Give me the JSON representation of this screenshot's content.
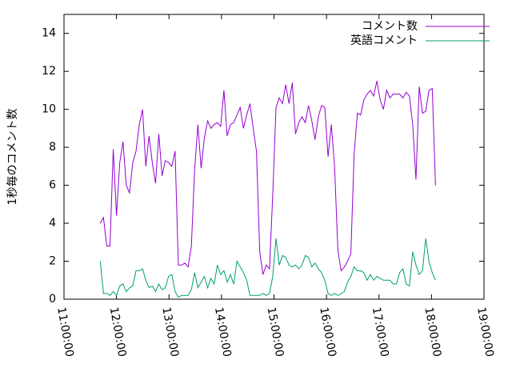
{
  "chart_data": {
    "type": "line",
    "ylabel": "1秒毎のコメント数",
    "x": [
      11.69,
      11.752,
      11.814,
      11.876,
      11.938,
      12.0,
      12.062,
      12.124,
      12.186,
      12.248,
      12.31,
      12.372,
      12.434,
      12.496,
      12.558,
      12.62,
      12.682,
      12.744,
      12.806,
      12.868,
      12.93,
      12.992,
      13.054,
      13.116,
      13.178,
      13.24,
      13.302,
      13.364,
      13.426,
      13.488,
      13.55,
      13.612,
      13.674,
      13.736,
      13.798,
      13.86,
      13.922,
      13.984,
      14.046,
      14.108,
      14.17,
      14.232,
      14.294,
      14.356,
      14.418,
      14.48,
      14.542,
      14.604,
      14.666,
      14.728,
      14.79,
      14.852,
      14.914,
      14.976,
      15.038,
      15.1,
      15.162,
      15.224,
      15.286,
      15.348,
      15.41,
      15.472,
      15.534,
      15.596,
      15.658,
      15.72,
      15.782,
      15.844,
      15.906,
      15.968,
      16.03,
      16.092,
      16.154,
      16.216,
      16.278,
      16.34,
      16.402,
      16.464,
      16.526,
      16.588,
      16.65,
      16.712,
      16.774,
      16.836,
      16.898,
      16.96,
      17.022,
      17.084,
      17.146,
      17.208,
      17.27,
      17.332,
      17.394,
      17.456,
      17.518,
      17.58,
      17.642,
      17.704,
      17.766,
      17.828,
      17.89,
      17.952,
      18.014,
      18.076
    ],
    "series": [
      {
        "name": "コメント数",
        "color": "#9400d3",
        "values": [
          4.0,
          4.3,
          2.8,
          2.8,
          7.9,
          4.4,
          7.2,
          8.3,
          6.0,
          5.6,
          7.2,
          7.8,
          9.2,
          10.0,
          7.0,
          8.6,
          7.2,
          6.1,
          8.7,
          6.5,
          7.3,
          7.2,
          7.0,
          7.8,
          1.8,
          1.8,
          1.9,
          1.7,
          2.8,
          6.8,
          9.2,
          6.9,
          8.5,
          9.4,
          9.0,
          9.2,
          9.3,
          9.1,
          11.0,
          8.6,
          9.2,
          9.3,
          9.7,
          10.1,
          9.0,
          9.7,
          10.3,
          9.0,
          7.8,
          2.5,
          1.3,
          1.8,
          1.6,
          5.5,
          10.1,
          10.6,
          10.3,
          11.3,
          10.3,
          11.4,
          8.7,
          9.3,
          9.6,
          9.3,
          10.2,
          9.4,
          8.4,
          9.6,
          10.2,
          10.1,
          7.5,
          9.2,
          7.0,
          2.6,
          1.5,
          1.7,
          2.0,
          2.4,
          7.6,
          9.8,
          9.7,
          10.5,
          10.8,
          11.0,
          10.7,
          11.5,
          10.5,
          10.0,
          11.0,
          10.6,
          10.8,
          10.8,
          10.8,
          10.6,
          10.9,
          10.7,
          9.2,
          6.3,
          11.2,
          9.8,
          9.9,
          11.0,
          11.1,
          6.0
        ]
      },
      {
        "name": "英語コメント",
        "color": "#009e73",
        "values": [
          2.0,
          0.3,
          0.3,
          0.2,
          0.4,
          0.2,
          0.7,
          0.8,
          0.4,
          0.6,
          0.7,
          1.5,
          1.5,
          1.6,
          1.0,
          0.6,
          0.7,
          0.4,
          0.8,
          0.5,
          0.6,
          1.2,
          1.3,
          0.4,
          0.1,
          0.2,
          0.2,
          0.2,
          0.5,
          1.4,
          0.6,
          0.9,
          1.2,
          0.6,
          1.1,
          0.8,
          1.8,
          1.3,
          1.5,
          0.9,
          1.3,
          0.8,
          2.0,
          1.7,
          1.4,
          1.0,
          0.2,
          0.2,
          0.2,
          0.2,
          0.3,
          0.2,
          0.3,
          1.2,
          3.2,
          1.8,
          2.3,
          2.2,
          1.8,
          1.7,
          1.8,
          1.6,
          1.8,
          2.3,
          2.2,
          1.7,
          1.9,
          1.6,
          1.4,
          1.0,
          0.3,
          0.2,
          0.3,
          0.2,
          0.3,
          0.4,
          0.9,
          1.2,
          1.7,
          1.5,
          1.5,
          1.4,
          1.0,
          1.3,
          1.0,
          1.2,
          1.1,
          1.0,
          1.0,
          1.0,
          0.8,
          0.8,
          1.4,
          1.6,
          0.8,
          0.7,
          2.5,
          1.8,
          1.3,
          1.5,
          3.2,
          2.0,
          1.4,
          1.0
        ]
      }
    ],
    "xlim": [
      11,
      19
    ],
    "xticks": [
      {
        "value": 11,
        "label": "11:00:00"
      },
      {
        "value": 12,
        "label": "12:00:00"
      },
      {
        "value": 13,
        "label": "13:00:00"
      },
      {
        "value": 14,
        "label": "14:00:00"
      },
      {
        "value": 15,
        "label": "15:00:00"
      },
      {
        "value": 16,
        "label": "16:00:00"
      },
      {
        "value": 17,
        "label": "17:00:00"
      },
      {
        "value": 18,
        "label": "18:00:00"
      },
      {
        "value": 19,
        "label": "19:00:00"
      }
    ],
    "ylim": [
      0,
      15
    ],
    "yticks": [
      0,
      2,
      4,
      6,
      8,
      10,
      12,
      14
    ],
    "grid": false,
    "legend": "top-right"
  }
}
